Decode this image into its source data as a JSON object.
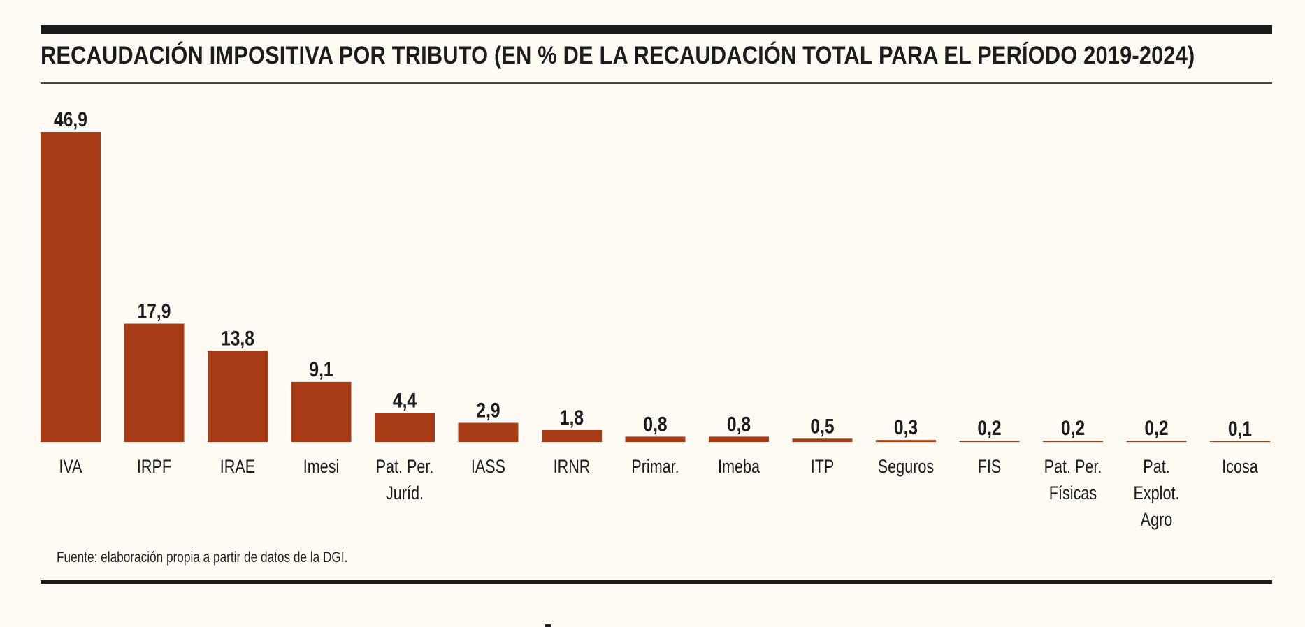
{
  "chart_data": {
    "type": "bar",
    "title": "RECAUDACIÓN IMPOSITIVA POR TRIBUTO (EN % DE LA RECAUDACIÓN TOTAL PARA EL PERÍODO 2019-2024)",
    "xlabel": "",
    "ylabel": "",
    "ylim": [
      0,
      46.9
    ],
    "grid": false,
    "categories": [
      [
        "IVA"
      ],
      [
        "IRPF"
      ],
      [
        "IRAE"
      ],
      [
        "Imesi"
      ],
      [
        "Pat. Per.",
        "Juríd."
      ],
      [
        "IASS"
      ],
      [
        "IRNR"
      ],
      [
        "Primar."
      ],
      [
        "Imeba"
      ],
      [
        "ITP"
      ],
      [
        "Seguros"
      ],
      [
        "FIS"
      ],
      [
        "Pat. Per.",
        "Físicas"
      ],
      [
        "Pat.",
        "Explot.",
        "Agro"
      ],
      [
        "Icosa"
      ]
    ],
    "values": [
      46.9,
      17.9,
      13.8,
      9.1,
      4.4,
      2.9,
      1.8,
      0.8,
      0.8,
      0.5,
      0.3,
      0.2,
      0.2,
      0.2,
      0.1
    ],
    "value_labels": [
      "46,9",
      "17,9",
      "13,8",
      "9,1",
      "4,4",
      "2,9",
      "1,8",
      "0,8",
      "0,8",
      "0,5",
      "0,3",
      "0,2",
      "0,2",
      "0,2",
      "0,1"
    ],
    "bar_color": "#A63B16"
  },
  "source": "Fuente: elaboración propia a partir de datos de la DGI."
}
